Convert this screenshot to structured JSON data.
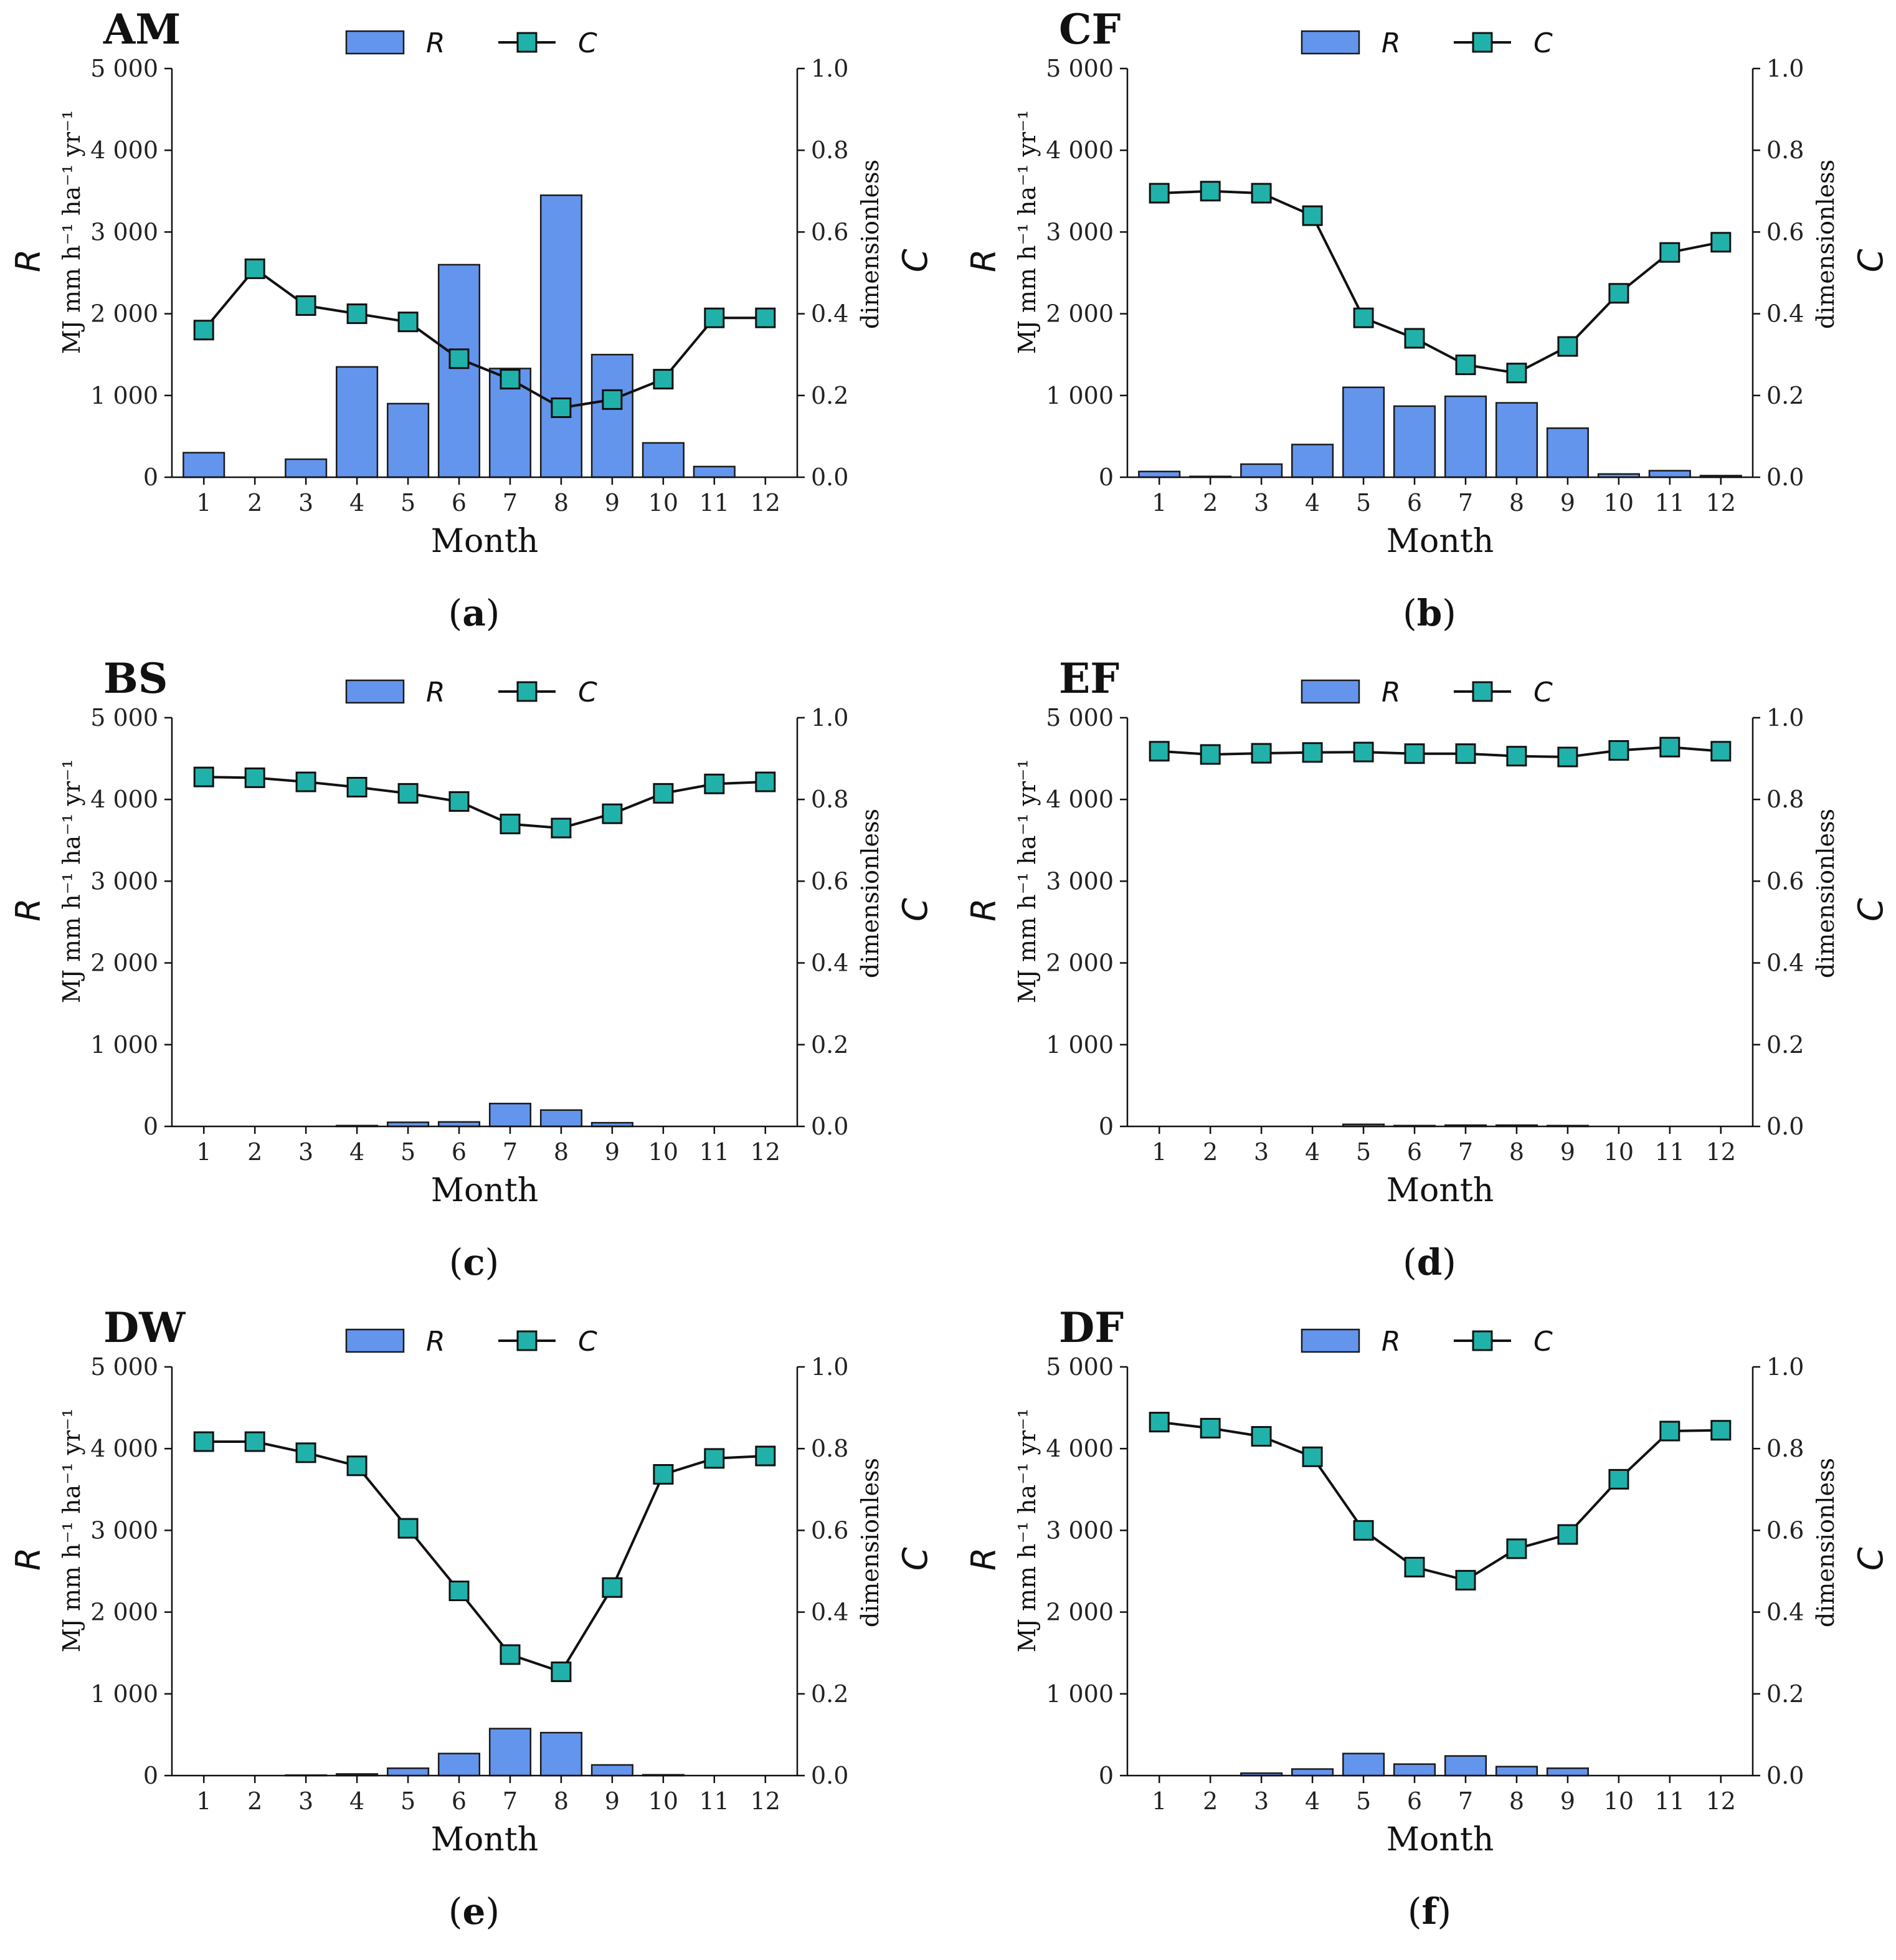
{
  "figure": {
    "x_label": "Month",
    "y_left_main": "R",
    "y_left_unit": "MJ mm h⁻¹ ha⁻¹ yr⁻¹",
    "y_right_main": "C",
    "y_right_unit": "dimensionless",
    "legend": {
      "bar_label": "R",
      "line_label": "C"
    },
    "colors": {
      "bar": "#6495ED",
      "marker": "#20B2AA",
      "line": "#111111"
    }
  },
  "captions": [
    "a",
    "b",
    "c",
    "d",
    "e",
    "f"
  ],
  "chart_data": [
    {
      "type": "bar+line",
      "title": "AM",
      "categories": [
        "1",
        "2",
        "3",
        "4",
        "5",
        "6",
        "7",
        "8",
        "9",
        "10",
        "11",
        "12"
      ],
      "series": [
        {
          "name": "R",
          "axis": "left",
          "kind": "bar",
          "values": [
            300,
            0,
            220,
            1350,
            900,
            2600,
            1330,
            3450,
            1500,
            420,
            130,
            0
          ]
        },
        {
          "name": "C",
          "axis": "right",
          "kind": "line",
          "values": [
            0.36,
            0.51,
            0.42,
            0.4,
            0.38,
            0.29,
            0.24,
            0.17,
            0.19,
            0.24,
            0.39,
            0.39
          ]
        }
      ],
      "xlabel": "Month",
      "ylabel_left": "R",
      "ylabel_right": "C",
      "ylim_left": [
        0,
        5000
      ],
      "ylim_right": [
        0,
        1.0
      ],
      "yticks_left": [
        "0",
        "1 000",
        "2 000",
        "3 000",
        "4 000",
        "5 000"
      ],
      "yticks_right": [
        "0.0",
        "0.2",
        "0.4",
        "0.6",
        "0.8",
        "1.0"
      ]
    },
    {
      "type": "bar+line",
      "title": "CF",
      "categories": [
        "1",
        "2",
        "3",
        "4",
        "5",
        "6",
        "7",
        "8",
        "9",
        "10",
        "11",
        "12"
      ],
      "series": [
        {
          "name": "R",
          "axis": "left",
          "kind": "bar",
          "values": [
            70,
            10,
            160,
            400,
            1100,
            870,
            990,
            910,
            600,
            40,
            80,
            20
          ]
        },
        {
          "name": "C",
          "axis": "right",
          "kind": "line",
          "values": [
            0.695,
            0.7,
            0.695,
            0.64,
            0.39,
            0.34,
            0.275,
            0.255,
            0.32,
            0.45,
            0.55,
            0.575
          ]
        }
      ],
      "xlabel": "Month",
      "ylabel_left": "R",
      "ylabel_right": "C",
      "ylim_left": [
        0,
        5000
      ],
      "ylim_right": [
        0,
        1.0
      ],
      "yticks_left": [
        "0",
        "1 000",
        "2 000",
        "3 000",
        "4 000",
        "5 000"
      ],
      "yticks_right": [
        "0.0",
        "0.2",
        "0.4",
        "0.6",
        "0.8",
        "1.0"
      ]
    },
    {
      "type": "bar+line",
      "title": "BS",
      "categories": [
        "1",
        "2",
        "3",
        "4",
        "5",
        "6",
        "7",
        "8",
        "9",
        "10",
        "11",
        "12"
      ],
      "series": [
        {
          "name": "R",
          "axis": "left",
          "kind": "bar",
          "values": [
            0,
            0,
            0,
            10,
            50,
            55,
            280,
            200,
            45,
            0,
            0,
            0
          ]
        },
        {
          "name": "C",
          "axis": "right",
          "kind": "line",
          "values": [
            0.855,
            0.853,
            0.843,
            0.83,
            0.815,
            0.795,
            0.74,
            0.73,
            0.765,
            0.815,
            0.838,
            0.843
          ]
        }
      ],
      "xlabel": "Month",
      "ylabel_left": "R",
      "ylabel_right": "C",
      "ylim_left": [
        0,
        5000
      ],
      "ylim_right": [
        0,
        1.0
      ],
      "yticks_left": [
        "0",
        "1 000",
        "2 000",
        "3 000",
        "4 000",
        "5 000"
      ],
      "yticks_right": [
        "0.0",
        "0.2",
        "0.4",
        "0.6",
        "0.8",
        "1.0"
      ]
    },
    {
      "type": "bar+line",
      "title": "EF",
      "categories": [
        "1",
        "2",
        "3",
        "4",
        "5",
        "6",
        "7",
        "8",
        "9",
        "10",
        "11",
        "12"
      ],
      "series": [
        {
          "name": "R",
          "axis": "left",
          "kind": "bar",
          "values": [
            0,
            0,
            0,
            0,
            25,
            10,
            15,
            15,
            10,
            0,
            0,
            0
          ]
        },
        {
          "name": "C",
          "axis": "right",
          "kind": "line",
          "values": [
            0.918,
            0.91,
            0.913,
            0.915,
            0.916,
            0.912,
            0.912,
            0.906,
            0.904,
            0.92,
            0.928,
            0.918
          ]
        }
      ],
      "xlabel": "Month",
      "ylabel_left": "R",
      "ylabel_right": "C",
      "ylim_left": [
        0,
        5000
      ],
      "ylim_right": [
        0,
        1.0
      ],
      "yticks_left": [
        "0",
        "1 000",
        "2 000",
        "3 000",
        "4 000",
        "5 000"
      ],
      "yticks_right": [
        "0.0",
        "0.2",
        "0.4",
        "0.6",
        "0.8",
        "1.0"
      ]
    },
    {
      "type": "bar+line",
      "title": "DW",
      "categories": [
        "1",
        "2",
        "3",
        "4",
        "5",
        "6",
        "7",
        "8",
        "9",
        "10",
        "11",
        "12"
      ],
      "series": [
        {
          "name": "R",
          "axis": "left",
          "kind": "bar",
          "values": [
            0,
            0,
            5,
            20,
            90,
            270,
            575,
            525,
            130,
            10,
            0,
            0
          ]
        },
        {
          "name": "C",
          "axis": "right",
          "kind": "line",
          "values": [
            0.817,
            0.817,
            0.79,
            0.758,
            0.605,
            0.452,
            0.296,
            0.254,
            0.46,
            0.737,
            0.776,
            0.782
          ]
        }
      ],
      "xlabel": "Month",
      "ylabel_left": "R",
      "ylabel_right": "C",
      "ylim_left": [
        0,
        5000
      ],
      "ylim_right": [
        0,
        1.0
      ],
      "yticks_left": [
        "0",
        "1 000",
        "2 000",
        "3 000",
        "4 000",
        "5 000"
      ],
      "yticks_right": [
        "0.0",
        "0.2",
        "0.4",
        "0.6",
        "0.8",
        "1.0"
      ]
    },
    {
      "type": "bar+line",
      "title": "DF",
      "categories": [
        "1",
        "2",
        "3",
        "4",
        "5",
        "6",
        "7",
        "8",
        "9",
        "10",
        "11",
        "12"
      ],
      "series": [
        {
          "name": "R",
          "axis": "left",
          "kind": "bar",
          "values": [
            0,
            0,
            30,
            80,
            270,
            140,
            240,
            110,
            90,
            0,
            0,
            0
          ]
        },
        {
          "name": "C",
          "axis": "right",
          "kind": "line",
          "values": [
            0.865,
            0.85,
            0.83,
            0.78,
            0.6,
            0.51,
            0.478,
            0.555,
            0.59,
            0.725,
            0.843,
            0.845
          ]
        }
      ],
      "xlabel": "Month",
      "ylabel_left": "R",
      "ylabel_right": "C",
      "ylim_left": [
        0,
        5000
      ],
      "ylim_right": [
        0,
        1.0
      ],
      "yticks_left": [
        "0",
        "1 000",
        "2 000",
        "3 000",
        "4 000",
        "5 000"
      ],
      "yticks_right": [
        "0.0",
        "0.2",
        "0.4",
        "0.6",
        "0.8",
        "1.0"
      ]
    }
  ]
}
